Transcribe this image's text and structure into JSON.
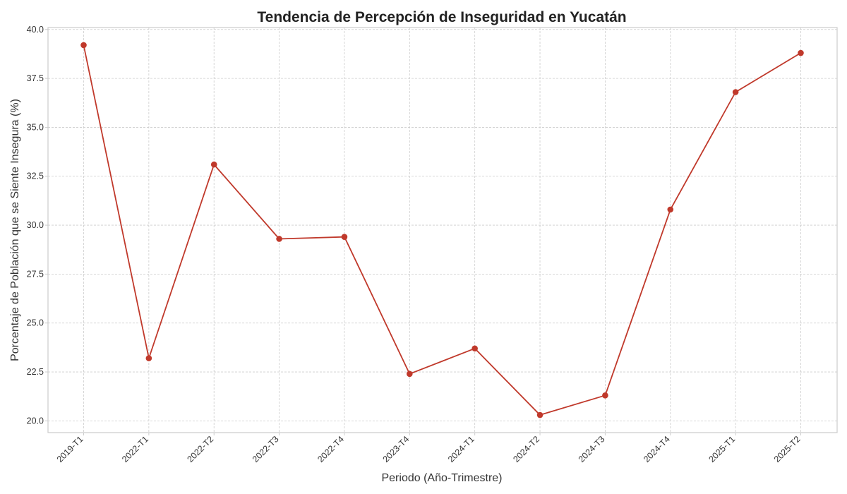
{
  "chart_data": {
    "type": "line",
    "title": "Tendencia de Percepción de Inseguridad en Yucatán",
    "xlabel": "Periodo (Año-Trimestre)",
    "ylabel": "Porcentaje de Población que se Siente Insegura (%)",
    "categories": [
      "2019-T1",
      "2022-T1",
      "2022-T2",
      "2022-T3",
      "2022-T4",
      "2023-T4",
      "2024-T1",
      "2024-T2",
      "2024-T3",
      "2024-T4",
      "2025-T1",
      "2025-T2"
    ],
    "series": [
      {
        "values": [
          39.2,
          23.2,
          33.1,
          29.3,
          29.4,
          22.4,
          23.7,
          20.3,
          21.3,
          30.8,
          36.8,
          38.8
        ],
        "color": "#c0392b",
        "marker": "circle"
      }
    ],
    "ylim": [
      19.4,
      40.1
    ],
    "yticks": [
      20.0,
      22.5,
      25.0,
      27.5,
      30.0,
      32.5,
      35.0,
      37.5,
      40.0
    ],
    "ytick_labels": [
      "20.0",
      "22.5",
      "25.0",
      "27.5",
      "30.0",
      "32.5",
      "35.0",
      "37.5",
      "40.0"
    ],
    "grid": true,
    "legend": "none"
  }
}
